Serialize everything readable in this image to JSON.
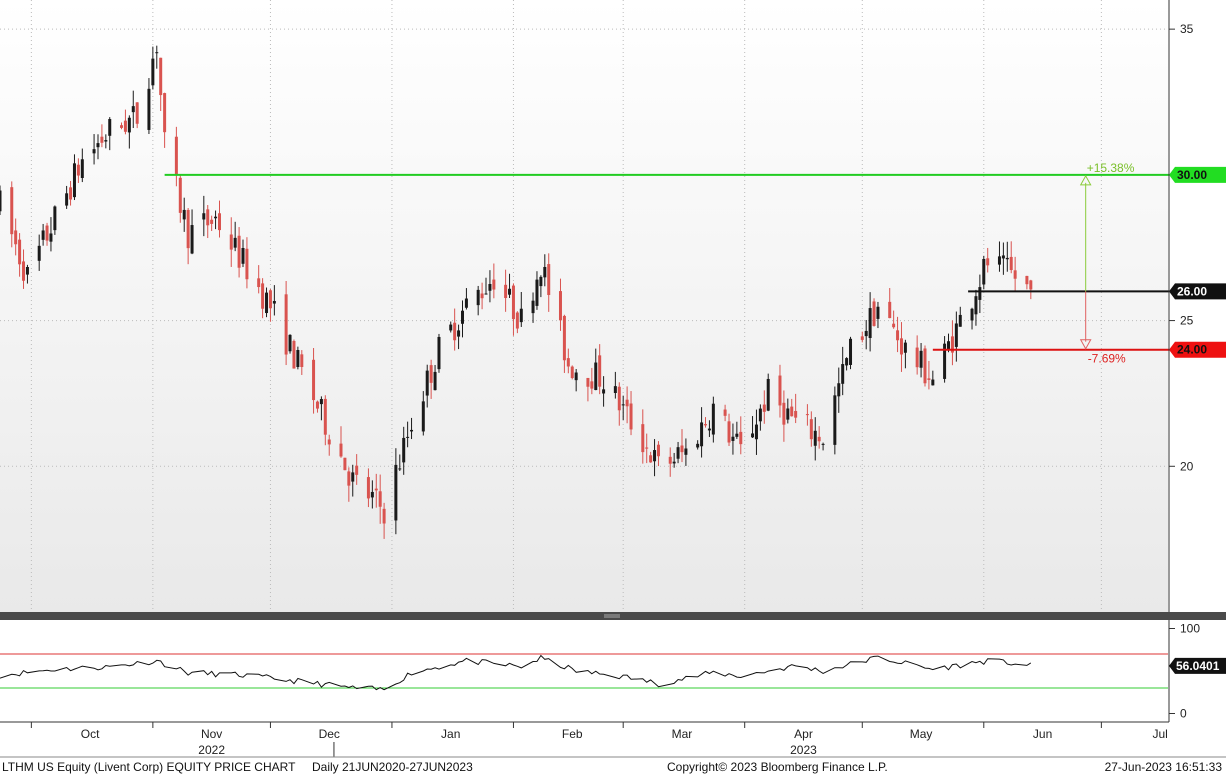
{
  "chart_data": {
    "type": "candlestick",
    "ticker_title": "LTHM US Equity (Livent Corp) EQUITY PRICE CHART",
    "frequency": "Daily 21JUN2020-27JUN2023",
    "copyright": "Copyright© 2023 Bloomberg Finance L.P.",
    "timestamp": "27-Jun-2023 16:51:33",
    "colors": {
      "up": "#1a1a1a",
      "down": "#d9534f",
      "target_line": "#22cc22",
      "stop_line": "#dd1111",
      "current_line": "#111111",
      "rsi": "#111111"
    },
    "price_axis": {
      "ylim": [
        15,
        36
      ],
      "ticks": [
        "35",
        "25",
        "20"
      ],
      "tick_values": [
        35,
        25,
        20
      ]
    },
    "months": [
      {
        "label": "Oct",
        "date": "2022-10-01"
      },
      {
        "label": "Nov",
        "date": "2022-11-01"
      },
      {
        "label": "Dec",
        "date": "2022-12-01"
      },
      {
        "label": "Jan",
        "date": "2023-01-01"
      },
      {
        "label": "Feb",
        "date": "2023-02-01"
      },
      {
        "label": "Mar",
        "date": "2023-03-01"
      },
      {
        "label": "Apr",
        "date": "2023-04-01"
      },
      {
        "label": "May",
        "date": "2023-05-01"
      },
      {
        "label": "Jun",
        "date": "2023-06-01"
      },
      {
        "label": "Jul",
        "date": "2023-07-01"
      }
    ],
    "years": [
      {
        "label": "2022",
        "date": "2022-11-01"
      },
      {
        "label": "2023",
        "date": "2023-04-01"
      }
    ],
    "levels": {
      "target": {
        "value": 30.0,
        "label": "30.00",
        "pct": "+15.38%"
      },
      "current": {
        "value": 26.0,
        "label": "26.00"
      },
      "stop": {
        "value": 24.0,
        "label": "24.00",
        "pct": "-7.69%"
      }
    },
    "x_range": [
      "2022-09-23",
      "2023-07-18"
    ],
    "anchors": [
      [
        "2022-09-23",
        29.0
      ],
      [
        "2022-09-30",
        26.5
      ],
      [
        "2022-10-07",
        28.5
      ],
      [
        "2022-10-14",
        30.5
      ],
      [
        "2022-10-21",
        31.5
      ],
      [
        "2022-10-28",
        32.0
      ],
      [
        "2022-11-02",
        34.5
      ],
      [
        "2022-11-04",
        31.0
      ],
      [
        "2022-11-10",
        28.0
      ],
      [
        "2022-11-17",
        28.5
      ],
      [
        "2022-11-24",
        27.0
      ],
      [
        "2022-12-01",
        25.5
      ],
      [
        "2022-12-08",
        23.5
      ],
      [
        "2022-12-15",
        21.5
      ],
      [
        "2022-12-22",
        19.5
      ],
      [
        "2022-12-30",
        18.5
      ],
      [
        "2023-01-06",
        21.5
      ],
      [
        "2023-01-13",
        24.0
      ],
      [
        "2023-01-20",
        25.5
      ],
      [
        "2023-01-27",
        26.5
      ],
      [
        "2023-02-03",
        25.0
      ],
      [
        "2023-02-08",
        27.0
      ],
      [
        "2023-02-15",
        23.5
      ],
      [
        "2023-02-24",
        23.0
      ],
      [
        "2023-03-03",
        21.5
      ],
      [
        "2023-03-10",
        20.0
      ],
      [
        "2023-03-17",
        20.5
      ],
      [
        "2023-03-24",
        22.0
      ],
      [
        "2023-03-31",
        20.5
      ],
      [
        "2023-04-07",
        22.5
      ],
      [
        "2023-04-14",
        21.5
      ],
      [
        "2023-04-21",
        21.0
      ],
      [
        "2023-04-28",
        24.0
      ],
      [
        "2023-05-05",
        25.5
      ],
      [
        "2023-05-12",
        24.0
      ],
      [
        "2023-05-19",
        23.0
      ],
      [
        "2023-05-26",
        25.0
      ],
      [
        "2023-06-02",
        27.0
      ],
      [
        "2023-06-09",
        26.5
      ],
      [
        "2023-06-13",
        26.0
      ]
    ],
    "rsi": {
      "ylim": [
        -10,
        110
      ],
      "ticks": [
        "100",
        "0"
      ],
      "tick_values": [
        100,
        0
      ],
      "overbought": 70,
      "oversold": 30,
      "last_value": "56.0401",
      "anchors": [
        [
          "2022-09-23",
          45
        ],
        [
          "2022-10-07",
          52
        ],
        [
          "2022-10-21",
          55
        ],
        [
          "2022-11-02",
          62
        ],
        [
          "2022-11-10",
          48
        ],
        [
          "2022-11-24",
          45
        ],
        [
          "2022-12-08",
          38
        ],
        [
          "2022-12-22",
          30
        ],
        [
          "2022-12-30",
          28
        ],
        [
          "2023-01-06",
          48
        ],
        [
          "2023-01-20",
          62
        ],
        [
          "2023-02-03",
          55
        ],
        [
          "2023-02-08",
          65
        ],
        [
          "2023-02-17",
          50
        ],
        [
          "2023-03-03",
          42
        ],
        [
          "2023-03-10",
          35
        ],
        [
          "2023-03-24",
          48
        ],
        [
          "2023-03-31",
          44
        ],
        [
          "2023-04-14",
          56
        ],
        [
          "2023-04-21",
          50
        ],
        [
          "2023-05-05",
          66
        ],
        [
          "2023-05-19",
          52
        ],
        [
          "2023-06-02",
          62
        ],
        [
          "2023-06-09",
          59
        ],
        [
          "2023-06-13",
          56
        ]
      ]
    }
  }
}
